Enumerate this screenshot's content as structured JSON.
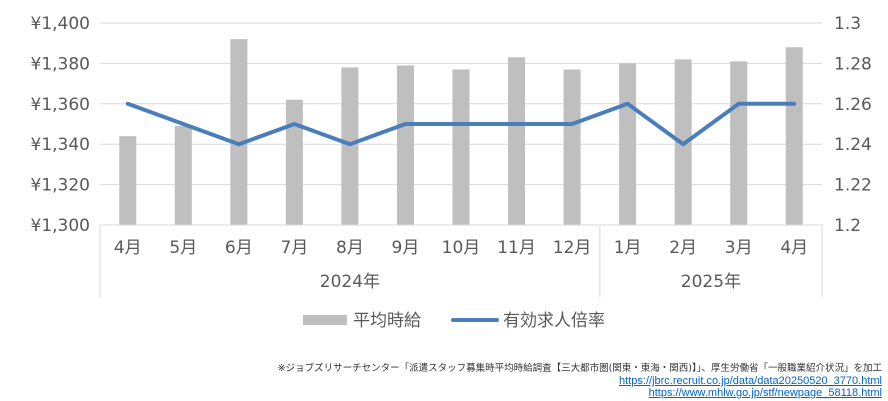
{
  "chart_data": {
    "type": "bar",
    "categories": [
      "4月",
      "5月",
      "6月",
      "7月",
      "8月",
      "9月",
      "10月",
      "11月",
      "12月",
      "1月",
      "2月",
      "3月",
      "4月"
    ],
    "groups": [
      {
        "label": "2024年",
        "count": 9
      },
      {
        "label": "2025年",
        "count": 4
      }
    ],
    "series": [
      {
        "name": "平均時給",
        "type": "bar",
        "axis": "left",
        "values": [
          1344,
          1349,
          1392,
          1362,
          1378,
          1379,
          1377,
          1383,
          1377,
          1380,
          1382,
          1381,
          1388
        ],
        "color": "#bfbfbf"
      },
      {
        "name": "有効求人倍率",
        "type": "line",
        "axis": "right",
        "values": [
          1.26,
          1.25,
          1.24,
          1.25,
          1.24,
          1.25,
          1.25,
          1.25,
          1.25,
          1.26,
          1.24,
          1.26,
          1.26
        ],
        "color": "#4a7ebb"
      }
    ],
    "y_left": {
      "lim": [
        1300,
        1400
      ],
      "ticks": [
        "¥1,300",
        "¥1,320",
        "¥1,340",
        "¥1,360",
        "¥1,380",
        "¥1,400"
      ]
    },
    "y_right": {
      "lim": [
        1.2,
        1.3
      ],
      "ticks": [
        "1.2",
        "1.22",
        "1.24",
        "1.26",
        "1.28",
        "1.3"
      ]
    },
    "grid": true,
    "legend_position": "bottom"
  },
  "footer": {
    "note": "※ジョブズリサーチセンター「派遣スタッフ募集時平均時給調査【三大都市圏(関東・東海・関西)】」、厚生労働省「一般職業紹介状況」を加工",
    "link1": "https://jbrc.recruit.co.jp/data/data20250520_3770.html",
    "link2": "https://www.mhlw.go.jp/stf/newpage_58118.html"
  }
}
